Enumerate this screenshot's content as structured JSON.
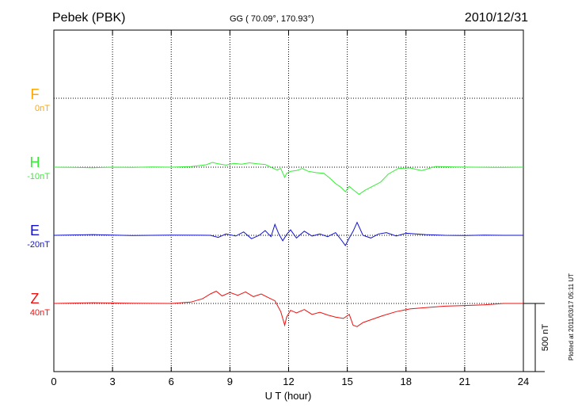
{
  "header": {
    "station": "Pebek (PBK)",
    "coords": "GG ( 70.09°, 170.93°)",
    "date": "2010/12/31"
  },
  "note": "Plotted at 2011/03/17 05:11 UT",
  "chart_data": {
    "type": "line",
    "title": "Pebek (PBK)",
    "xlabel": "U T (hour)",
    "ylabel": "",
    "xlim": [
      0,
      24
    ],
    "xticks": [
      "0",
      "3",
      "6",
      "9",
      "12",
      "15",
      "18",
      "21",
      "24"
    ],
    "grid": true,
    "scale_bar": {
      "label": "500 nT",
      "value": 500
    },
    "series": [
      {
        "name": "F",
        "offset_label": "0nT",
        "color": "#ffa500",
        "baseline": 0,
        "has_data": false,
        "x": [],
        "values": []
      },
      {
        "name": "H",
        "offset_label": "-10nT",
        "color": "#33ee33",
        "baseline": -10,
        "has_data": true,
        "x": [
          0,
          1,
          2,
          3,
          4,
          5,
          6,
          7,
          7.8,
          8.1,
          8.4,
          8.8,
          9.2,
          9.6,
          10,
          10.4,
          10.8,
          11.1,
          11.4,
          11.6,
          11.8,
          11.9,
          12.1,
          12.4,
          12.7,
          13,
          13.4,
          13.8,
          14.1,
          14.4,
          14.7,
          14.9,
          15.1,
          15.3,
          15.6,
          15.9,
          16.3,
          16.7,
          17.1,
          17.6,
          18.2,
          18.8,
          19.5,
          20.5,
          21.5,
          22.5,
          24
        ],
        "values": [
          -10,
          -12,
          -14,
          -10,
          -12,
          -8,
          -10,
          -6,
          8,
          25,
          15,
          5,
          18,
          12,
          22,
          15,
          10,
          -10,
          -30,
          -20,
          -85,
          -55,
          -40,
          -35,
          -20,
          -40,
          -50,
          -55,
          -90,
          -130,
          -160,
          -190,
          -150,
          -175,
          -210,
          -180,
          -150,
          -120,
          -60,
          -20,
          -15,
          -35,
          -5,
          -8,
          -10,
          -12,
          -10
        ]
      },
      {
        "name": "E",
        "offset_label": "-20nT",
        "color": "#1111cc",
        "baseline": -20,
        "has_data": true,
        "x": [
          0,
          2,
          4,
          6,
          8,
          8.4,
          8.8,
          9.3,
          9.7,
          10.1,
          10.5,
          10.8,
          11.1,
          11.3,
          11.5,
          11.7,
          11.9,
          12.1,
          12.4,
          12.8,
          13.2,
          13.6,
          14,
          14.4,
          14.7,
          14.9,
          15.1,
          15.3,
          15.5,
          15.8,
          16.2,
          16.6,
          17,
          17.5,
          18,
          19,
          20,
          21,
          22,
          23,
          24
        ],
        "values": [
          -20,
          -15,
          -22,
          -18,
          -20,
          -35,
          -10,
          -25,
          5,
          -45,
          -20,
          15,
          -30,
          60,
          -10,
          -60,
          -15,
          20,
          -40,
          10,
          -25,
          -10,
          -30,
          0,
          -55,
          -95,
          -40,
          10,
          75,
          -20,
          -40,
          -10,
          0,
          -25,
          -5,
          -15,
          -20,
          -22,
          -18,
          -20,
          -20
        ]
      },
      {
        "name": "Z",
        "offset_label": "40nT",
        "color": "#ee1111",
        "baseline": 40,
        "has_data": true,
        "x": [
          0,
          2,
          4,
          6,
          7,
          7.6,
          8,
          8.3,
          8.6,
          9,
          9.4,
          9.8,
          10.2,
          10.6,
          11,
          11.3,
          11.6,
          11.8,
          11.9,
          12.1,
          12.4,
          12.8,
          13.2,
          13.6,
          14,
          14.4,
          14.8,
          15.1,
          15.3,
          15.5,
          15.8,
          16.2,
          16.8,
          17.5,
          18.2,
          19,
          20,
          21,
          22,
          23,
          24
        ],
        "values": [
          40,
          45,
          42,
          40,
          50,
          75,
          110,
          130,
          95,
          120,
          100,
          125,
          90,
          110,
          80,
          60,
          -20,
          -120,
          -60,
          -10,
          -30,
          -5,
          -40,
          -25,
          -45,
          -60,
          -70,
          -40,
          -120,
          -130,
          -100,
          -80,
          -50,
          -20,
          0,
          10,
          20,
          25,
          30,
          40,
          40
        ]
      }
    ]
  }
}
